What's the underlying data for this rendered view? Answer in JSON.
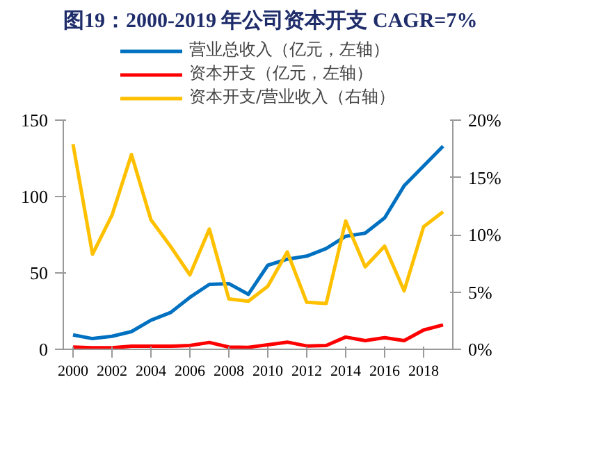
{
  "chart_data": {
    "type": "line",
    "title": "图19：2000-2019 年公司资本开支 CAGR=7%",
    "x": [
      2000,
      2001,
      2002,
      2003,
      2004,
      2005,
      2006,
      2007,
      2008,
      2009,
      2010,
      2011,
      2012,
      2013,
      2014,
      2015,
      2016,
      2017,
      2018,
      2019
    ],
    "xlim": [
      1999.5,
      2019.5
    ],
    "xticks": [
      2000,
      2002,
      2004,
      2006,
      2008,
      2010,
      2012,
      2014,
      2016,
      2018
    ],
    "ylim": [
      0,
      150
    ],
    "yticks": [
      0,
      50,
      100,
      150
    ],
    "y2lim": [
      0,
      20
    ],
    "y2ticks": [
      {
        "value": 0,
        "label": "0%"
      },
      {
        "value": 5,
        "label": "5%"
      },
      {
        "value": 10,
        "label": "10%"
      },
      {
        "value": 15,
        "label": "15%"
      },
      {
        "value": 20,
        "label": "20%"
      }
    ],
    "series": [
      {
        "name": "营业总收入（亿元，左轴）",
        "color": "#0070c0",
        "values": [
          9.4,
          7,
          8.5,
          11.6,
          19,
          24,
          34,
          42.5,
          43,
          36,
          55,
          59,
          61,
          66,
          74,
          76,
          86,
          107,
          120,
          133
        ]
      },
      {
        "name": "资本开支（亿元，左轴）",
        "color": "#ff0000",
        "values": [
          1.5,
          1,
          1,
          2,
          2,
          2,
          2.5,
          4.5,
          1.5,
          1.3,
          3,
          4.7,
          2.2,
          2.5,
          8,
          5.7,
          7.6,
          5.7,
          12.6,
          16
        ]
      },
      {
        "name": "资本开支/营业收入（右轴）",
        "color": "#ffc000",
        "axis": "y2",
        "values": [
          17.9,
          8.3,
          11.7,
          17,
          11.3,
          9,
          6.5,
          10.5,
          4.4,
          4.2,
          5.5,
          8.5,
          4.1,
          4.0,
          11.2,
          7.2,
          9.0,
          5.1,
          10.7,
          12.0
        ]
      }
    ],
    "grid": false,
    "legend": "top",
    "marker": "none",
    "line_style": "solid"
  }
}
